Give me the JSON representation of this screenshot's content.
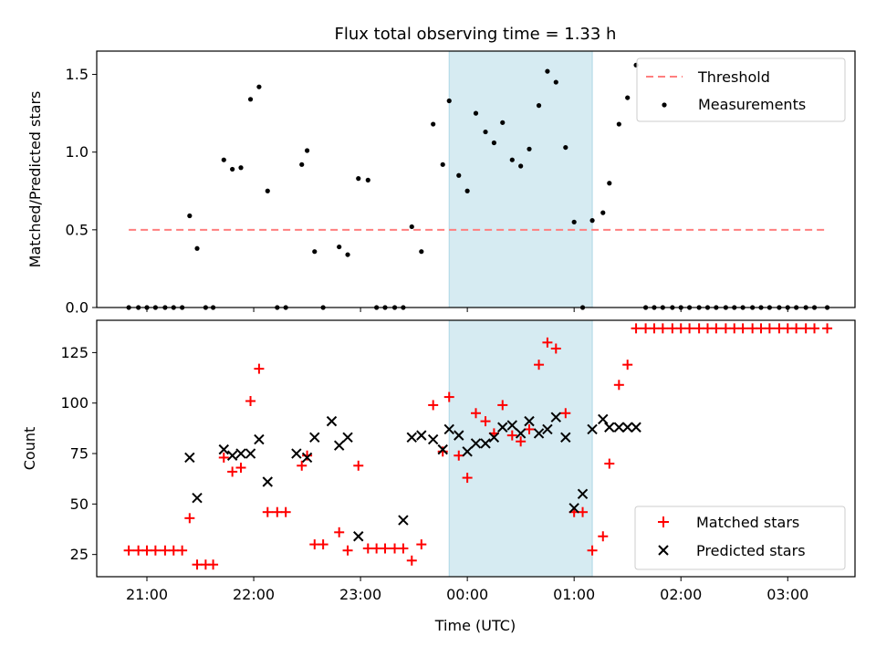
{
  "title": "Flux total observing time = 1.33 h",
  "colors": {
    "threshold": "#ff7f7f",
    "measurement": "#000000",
    "matched": "#ff0000",
    "predicted": "#000000",
    "span": "#add8e6"
  },
  "chart_data": [
    {
      "type": "scatter",
      "ylabel": "Matched/Predicted stars",
      "ylim": [
        0,
        1.65
      ],
      "yticks": [
        0.0,
        0.5,
        1.0,
        1.5
      ],
      "ytick_labels": [
        "0.0",
        "0.5",
        "1.0",
        "1.5"
      ],
      "xlim_hours": [
        20.53,
        27.63
      ],
      "grid": false,
      "legend_position": "top-right",
      "legend": [
        "Threshold",
        "Measurements"
      ],
      "threshold": {
        "name": "Threshold",
        "value": 0.5,
        "x_range_hours": [
          20.83,
          27.37
        ],
        "style": "dashed"
      },
      "highlight_span_hours": [
        23.83,
        25.17
      ],
      "series": [
        {
          "name": "Measurements",
          "x_hours": [
            20.83,
            20.92,
            21.0,
            21.08,
            21.17,
            21.25,
            21.33,
            21.4,
            21.47,
            21.55,
            21.62,
            21.72,
            21.8,
            21.88,
            21.97,
            22.05,
            22.13,
            22.22,
            22.3,
            22.45,
            22.5,
            22.57,
            22.65,
            22.8,
            22.88,
            22.98,
            23.07,
            23.15,
            23.23,
            23.32,
            23.4,
            23.48,
            23.57,
            23.68,
            23.77,
            23.83,
            23.92,
            24.0,
            24.08,
            24.17,
            24.25,
            24.33,
            24.42,
            24.5,
            24.58,
            24.67,
            24.75,
            24.83,
            24.92,
            25.0,
            25.08,
            25.17,
            25.27,
            25.33,
            25.42,
            25.5,
            25.58,
            25.67,
            25.75,
            25.83,
            25.92,
            26.0,
            26.08,
            26.17,
            26.25,
            26.33,
            26.42,
            26.5,
            26.58,
            26.67,
            26.75,
            26.83,
            26.92,
            27.0,
            27.08,
            27.17,
            27.25,
            27.37
          ],
          "y": [
            0,
            0,
            0,
            0,
            0,
            0,
            0,
            0.59,
            0.38,
            0,
            0,
            0.95,
            0.89,
            0.9,
            1.34,
            1.42,
            0.75,
            0,
            0,
            0.92,
            1.01,
            0.36,
            0,
            0.39,
            0.34,
            0.83,
            0.82,
            0,
            0,
            0,
            0,
            0.52,
            0.36,
            1.18,
            0.92,
            1.33,
            0.85,
            0.75,
            1.25,
            1.13,
            1.06,
            1.19,
            0.95,
            0.91,
            1.02,
            1.3,
            1.52,
            1.45,
            1.03,
            0.55,
            0,
            0.56,
            0.61,
            0.8,
            1.18,
            1.35,
            1.56,
            0,
            0,
            0,
            0,
            0,
            0,
            0,
            0,
            0,
            0,
            0,
            0,
            0,
            0,
            0,
            0,
            0,
            0,
            0,
            0,
            0
          ]
        }
      ]
    },
    {
      "type": "scatter",
      "ylabel": "Count",
      "xlabel": "Time (UTC)",
      "ylim": [
        14,
        141
      ],
      "yticks": [
        25,
        50,
        75,
        100,
        125
      ],
      "ytick_labels": [
        "25",
        "50",
        "75",
        "100",
        "125"
      ],
      "xlim_hours": [
        20.53,
        27.63
      ],
      "xticks_hours": [
        21,
        22,
        23,
        24,
        25,
        26,
        27
      ],
      "xtick_labels": [
        "21:00",
        "22:00",
        "23:00",
        "00:00",
        "01:00",
        "02:00",
        "03:00"
      ],
      "grid": false,
      "legend_position": "bottom-right",
      "legend": [
        "Matched stars",
        "Predicted stars"
      ],
      "highlight_span_hours": [
        23.83,
        25.17
      ],
      "series": [
        {
          "name": "Matched stars",
          "marker": "plus",
          "x_hours": [
            20.83,
            20.92,
            21.0,
            21.08,
            21.17,
            21.25,
            21.33,
            21.4,
            21.47,
            21.55,
            21.62,
            21.72,
            21.8,
            21.88,
            21.97,
            22.05,
            22.13,
            22.22,
            22.3,
            22.45,
            22.5,
            22.57,
            22.65,
            22.8,
            22.88,
            22.98,
            23.07,
            23.15,
            23.23,
            23.32,
            23.4,
            23.48,
            23.57,
            23.68,
            23.77,
            23.83,
            23.92,
            24.0,
            24.08,
            24.17,
            24.25,
            24.33,
            24.42,
            24.5,
            24.58,
            24.67,
            24.75,
            24.83,
            24.92,
            25.0,
            25.08,
            25.17,
            25.27,
            25.33,
            25.42,
            25.5,
            25.58,
            25.67,
            25.75,
            25.83,
            25.92,
            26.0,
            26.08,
            26.17,
            26.25,
            26.33,
            26.42,
            26.5,
            26.58,
            26.67,
            26.75,
            26.83,
            26.92,
            27.0,
            27.08,
            27.17,
            27.25,
            27.37
          ],
          "y": [
            27,
            27,
            27,
            27,
            27,
            27,
            27,
            43,
            20,
            20,
            20,
            73,
            66,
            68,
            101,
            117,
            46,
            46,
            46,
            69,
            74,
            30,
            30,
            36,
            27,
            69,
            28,
            28,
            28,
            28,
            28,
            22,
            30,
            99,
            76,
            103,
            74,
            63,
            95,
            91,
            85,
            99,
            84,
            81,
            87,
            119,
            130,
            127,
            95,
            46,
            46,
            27,
            34,
            70,
            109,
            119,
            137,
            137,
            137,
            137,
            137,
            137,
            137,
            137,
            137,
            137,
            137,
            137,
            137,
            137,
            137,
            137,
            137,
            137,
            137,
            137,
            137,
            137
          ]
        },
        {
          "name": "Predicted stars",
          "marker": "x",
          "x_hours": [
            21.4,
            21.47,
            21.72,
            21.8,
            21.88,
            21.97,
            22.05,
            22.13,
            22.4,
            22.5,
            22.57,
            22.73,
            22.8,
            22.88,
            22.98,
            23.4,
            23.48,
            23.57,
            23.68,
            23.77,
            23.83,
            23.92,
            24.0,
            24.08,
            24.17,
            24.25,
            24.33,
            24.42,
            24.5,
            24.58,
            24.67,
            24.75,
            24.83,
            24.92,
            25.0,
            25.08,
            25.17,
            25.27,
            25.33,
            25.42,
            25.5,
            25.58
          ],
          "y": [
            73,
            53,
            77,
            74,
            75,
            75,
            82,
            61,
            75,
            73,
            83,
            91,
            79,
            83,
            34,
            42,
            83,
            84,
            82,
            77,
            87,
            84,
            76,
            80,
            80,
            83,
            88,
            89,
            85,
            91,
            85,
            87,
            93,
            83,
            48,
            55,
            87,
            92,
            88,
            88,
            88,
            88
          ],
          "comment_none": ""
        }
      ]
    }
  ]
}
